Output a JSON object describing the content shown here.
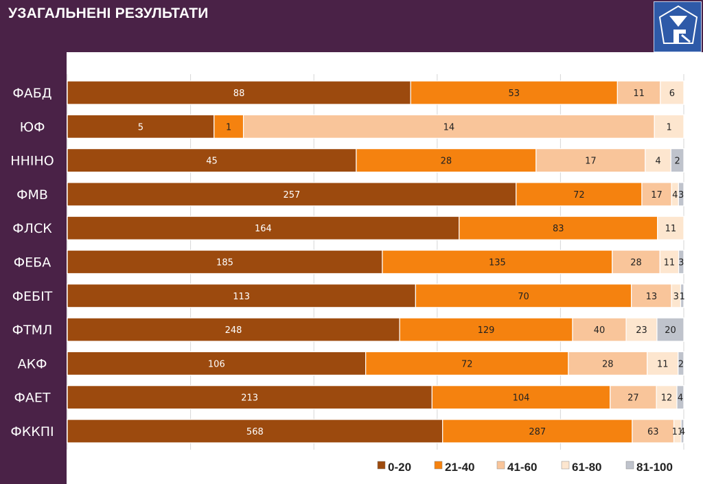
{
  "header": {
    "title": "УЗАГАЛЬНЕНІ РЕЗУЛЬТАТИ"
  },
  "colors": {
    "background": "#4a2247",
    "plot": "#ffffff",
    "series": [
      "#9c4a0e",
      "#f5820f",
      "#f9c59a",
      "#fde6cf",
      "#bfc3cc"
    ],
    "label_text_dark": "#222222",
    "label_text_light": "#ffffff"
  },
  "chart_data": {
    "type": "bar",
    "orientation": "horizontal",
    "stacked": true,
    "normalized": true,
    "title": "УЗАГАЛЬНЕНІ РЕЗУЛЬТАТИ",
    "xlabel": "",
    "ylabel": "",
    "grid": true,
    "legend_position": "bottom-right",
    "categories": [
      "ФАБД",
      "ЮФ",
      "ННІНО",
      "ФМВ",
      "ФЛСК",
      "ФЕБА",
      "ФЕБІТ",
      "ФТМЛ",
      "АКФ",
      "ФАЕТ",
      "ФККПІ"
    ],
    "series": [
      {
        "name": "0-20",
        "values": [
          88,
          5,
          45,
          257,
          164,
          185,
          113,
          248,
          106,
          213,
          568
        ]
      },
      {
        "name": "21-40",
        "values": [
          53,
          1,
          28,
          72,
          83,
          135,
          70,
          129,
          72,
          104,
          287
        ]
      },
      {
        "name": "41-60",
        "values": [
          11,
          14,
          17,
          17,
          0,
          28,
          13,
          40,
          28,
          27,
          63
        ]
      },
      {
        "name": "61-80",
        "values": [
          6,
          1,
          4,
          4,
          11,
          11,
          3,
          23,
          11,
          12,
          11
        ]
      },
      {
        "name": "81-100",
        "values": [
          0,
          0,
          2,
          3,
          0,
          3,
          1,
          20,
          2,
          4,
          4
        ]
      }
    ]
  }
}
